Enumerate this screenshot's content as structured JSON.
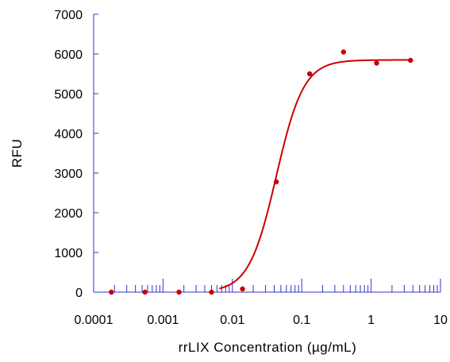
{
  "colors": {
    "axis": "#3333cc",
    "series": "#cc0000",
    "text": "#000000",
    "background": "#ffffff"
  },
  "chart_data": {
    "type": "scatter",
    "title": "",
    "xlabel": "rrLIX Concentration (µg/mL)",
    "ylabel": "RFU",
    "x_scale": "log",
    "xlim": [
      0.0001,
      10
    ],
    "ylim": [
      0,
      7000
    ],
    "x_ticks": [
      0.0001,
      0.001,
      0.01,
      0.1,
      1,
      10
    ],
    "x_tick_labels": [
      "0.0001",
      "0.001",
      "0.01",
      "0.1",
      "1",
      "10"
    ],
    "y_ticks": [
      0,
      1000,
      2000,
      3000,
      4000,
      5000,
      6000,
      7000
    ],
    "y_tick_labels": [
      "0",
      "1000",
      "2000",
      "3000",
      "4000",
      "5000",
      "6000",
      "7000"
    ],
    "grid": false,
    "legend": "none",
    "series": [
      {
        "points": [
          {
            "x": 0.00018,
            "y": 0
          },
          {
            "x": 0.00055,
            "y": 0
          },
          {
            "x": 0.0017,
            "y": 0
          },
          {
            "x": 0.005,
            "y": 0
          },
          {
            "x": 0.014,
            "y": 80
          },
          {
            "x": 0.043,
            "y": 2780
          },
          {
            "x": 0.13,
            "y": 5500
          },
          {
            "x": 0.4,
            "y": 6050
          },
          {
            "x": 1.2,
            "y": 5770
          },
          {
            "x": 3.7,
            "y": 5840
          }
        ],
        "fit": {
          "model": "4PL",
          "bottom": 0,
          "top": 5850,
          "ec50": 0.043,
          "hill": 2.2
        }
      }
    ]
  }
}
